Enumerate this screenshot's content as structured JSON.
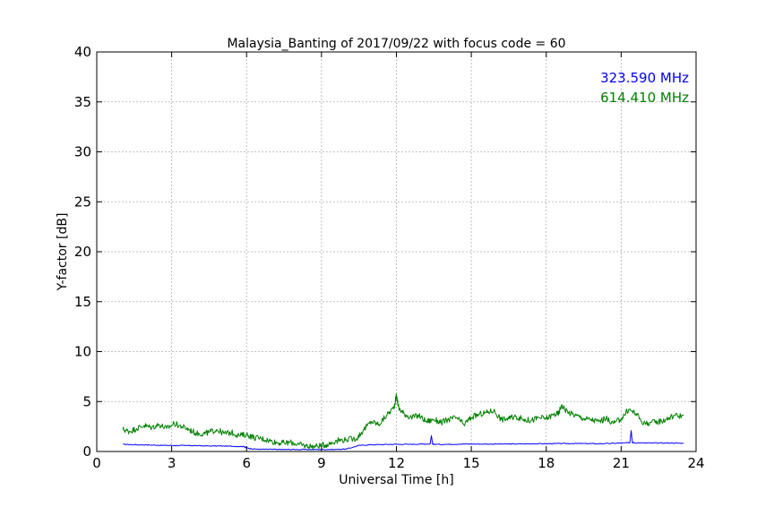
{
  "chart_data": {
    "type": "line",
    "title": "Malaysia_Banting of 2017/09/22 with focus code = 60",
    "xlabel": "Universal Time [h]",
    "ylabel": "Y-factor [dB]",
    "xlim": [
      0,
      24
    ],
    "ylim": [
      0,
      40
    ],
    "xticks": [
      0,
      3,
      6,
      9,
      12,
      15,
      18,
      21,
      24
    ],
    "yticks": [
      0,
      5,
      10,
      15,
      20,
      25,
      30,
      35,
      40
    ],
    "grid": true,
    "legend_placement": "top-right",
    "series": [
      {
        "name": "323.590 MHz",
        "color": "#0000ff",
        "noise": 0.04,
        "x": [
          1.05,
          1.5,
          2.0,
          2.5,
          3.0,
          3.5,
          4.0,
          4.5,
          5.0,
          5.5,
          5.9,
          6.0,
          6.3,
          6.6,
          7.0,
          7.5,
          8.0,
          8.5,
          9.0,
          9.5,
          10.0,
          10.5,
          11.0,
          11.5,
          12.0,
          12.5,
          13.0,
          13.35,
          13.4,
          13.45,
          13.5,
          14.0,
          14.5,
          15.0,
          15.5,
          16.0,
          16.5,
          17.0,
          17.5,
          18.0,
          18.5,
          19.0,
          19.5,
          20.0,
          20.5,
          21.0,
          21.35,
          21.4,
          21.45,
          21.5,
          22.0,
          22.5,
          23.0,
          23.5
        ],
        "y": [
          0.72,
          0.68,
          0.66,
          0.62,
          0.6,
          0.6,
          0.58,
          0.55,
          0.55,
          0.52,
          0.5,
          0.35,
          0.25,
          0.22,
          0.22,
          0.2,
          0.2,
          0.2,
          0.2,
          0.2,
          0.25,
          0.6,
          0.68,
          0.7,
          0.72,
          0.72,
          0.75,
          0.75,
          1.6,
          0.75,
          0.72,
          0.72,
          0.74,
          0.75,
          0.74,
          0.75,
          0.75,
          0.76,
          0.78,
          0.78,
          0.8,
          0.8,
          0.8,
          0.78,
          0.8,
          0.85,
          0.88,
          2.1,
          0.9,
          0.88,
          0.85,
          0.85,
          0.85,
          0.82
        ]
      },
      {
        "name": "614.410 MHz",
        "color": "#008000",
        "noise": 0.3,
        "x": [
          1.05,
          1.3,
          1.6,
          1.9,
          2.2,
          2.5,
          2.8,
          3.1,
          3.4,
          3.7,
          4.0,
          4.3,
          4.5,
          4.8,
          5.1,
          5.4,
          5.7,
          6.0,
          6.3,
          6.6,
          6.9,
          7.2,
          7.5,
          7.8,
          8.1,
          8.4,
          8.7,
          9.0,
          9.3,
          9.6,
          10.0,
          10.4,
          10.7,
          11.0,
          11.3,
          11.6,
          11.9,
          12.0,
          12.1,
          12.3,
          12.6,
          12.9,
          13.2,
          13.5,
          13.8,
          14.1,
          14.4,
          14.7,
          15.0,
          15.3,
          15.6,
          15.9,
          16.2,
          16.5,
          16.8,
          17.1,
          17.4,
          17.7,
          18.0,
          18.3,
          18.5,
          18.6,
          18.9,
          19.2,
          19.5,
          19.8,
          20.1,
          20.4,
          20.7,
          21.0,
          21.3,
          21.6,
          21.9,
          22.2,
          22.5,
          22.8,
          23.1,
          23.5
        ],
        "y": [
          2.2,
          2.0,
          2.3,
          2.6,
          2.4,
          2.7,
          2.3,
          2.8,
          2.5,
          2.2,
          1.8,
          1.8,
          1.9,
          2.2,
          1.8,
          1.9,
          1.6,
          1.7,
          1.4,
          1.3,
          1.1,
          0.9,
          0.85,
          0.9,
          0.7,
          0.55,
          0.5,
          0.6,
          0.75,
          1.1,
          1.2,
          1.3,
          2.2,
          3.0,
          2.7,
          3.6,
          4.4,
          5.6,
          4.3,
          3.8,
          3.4,
          3.6,
          3.0,
          3.2,
          2.9,
          3.2,
          3.4,
          2.7,
          3.4,
          3.7,
          3.9,
          4.1,
          3.2,
          3.3,
          3.5,
          3.2,
          3.1,
          3.4,
          3.3,
          3.7,
          3.8,
          4.6,
          3.9,
          3.6,
          3.3,
          3.2,
          3.0,
          3.3,
          2.8,
          3.3,
          4.2,
          3.8,
          2.8,
          2.9,
          3.0,
          3.2,
          3.6,
          3.6
        ]
      }
    ]
  }
}
